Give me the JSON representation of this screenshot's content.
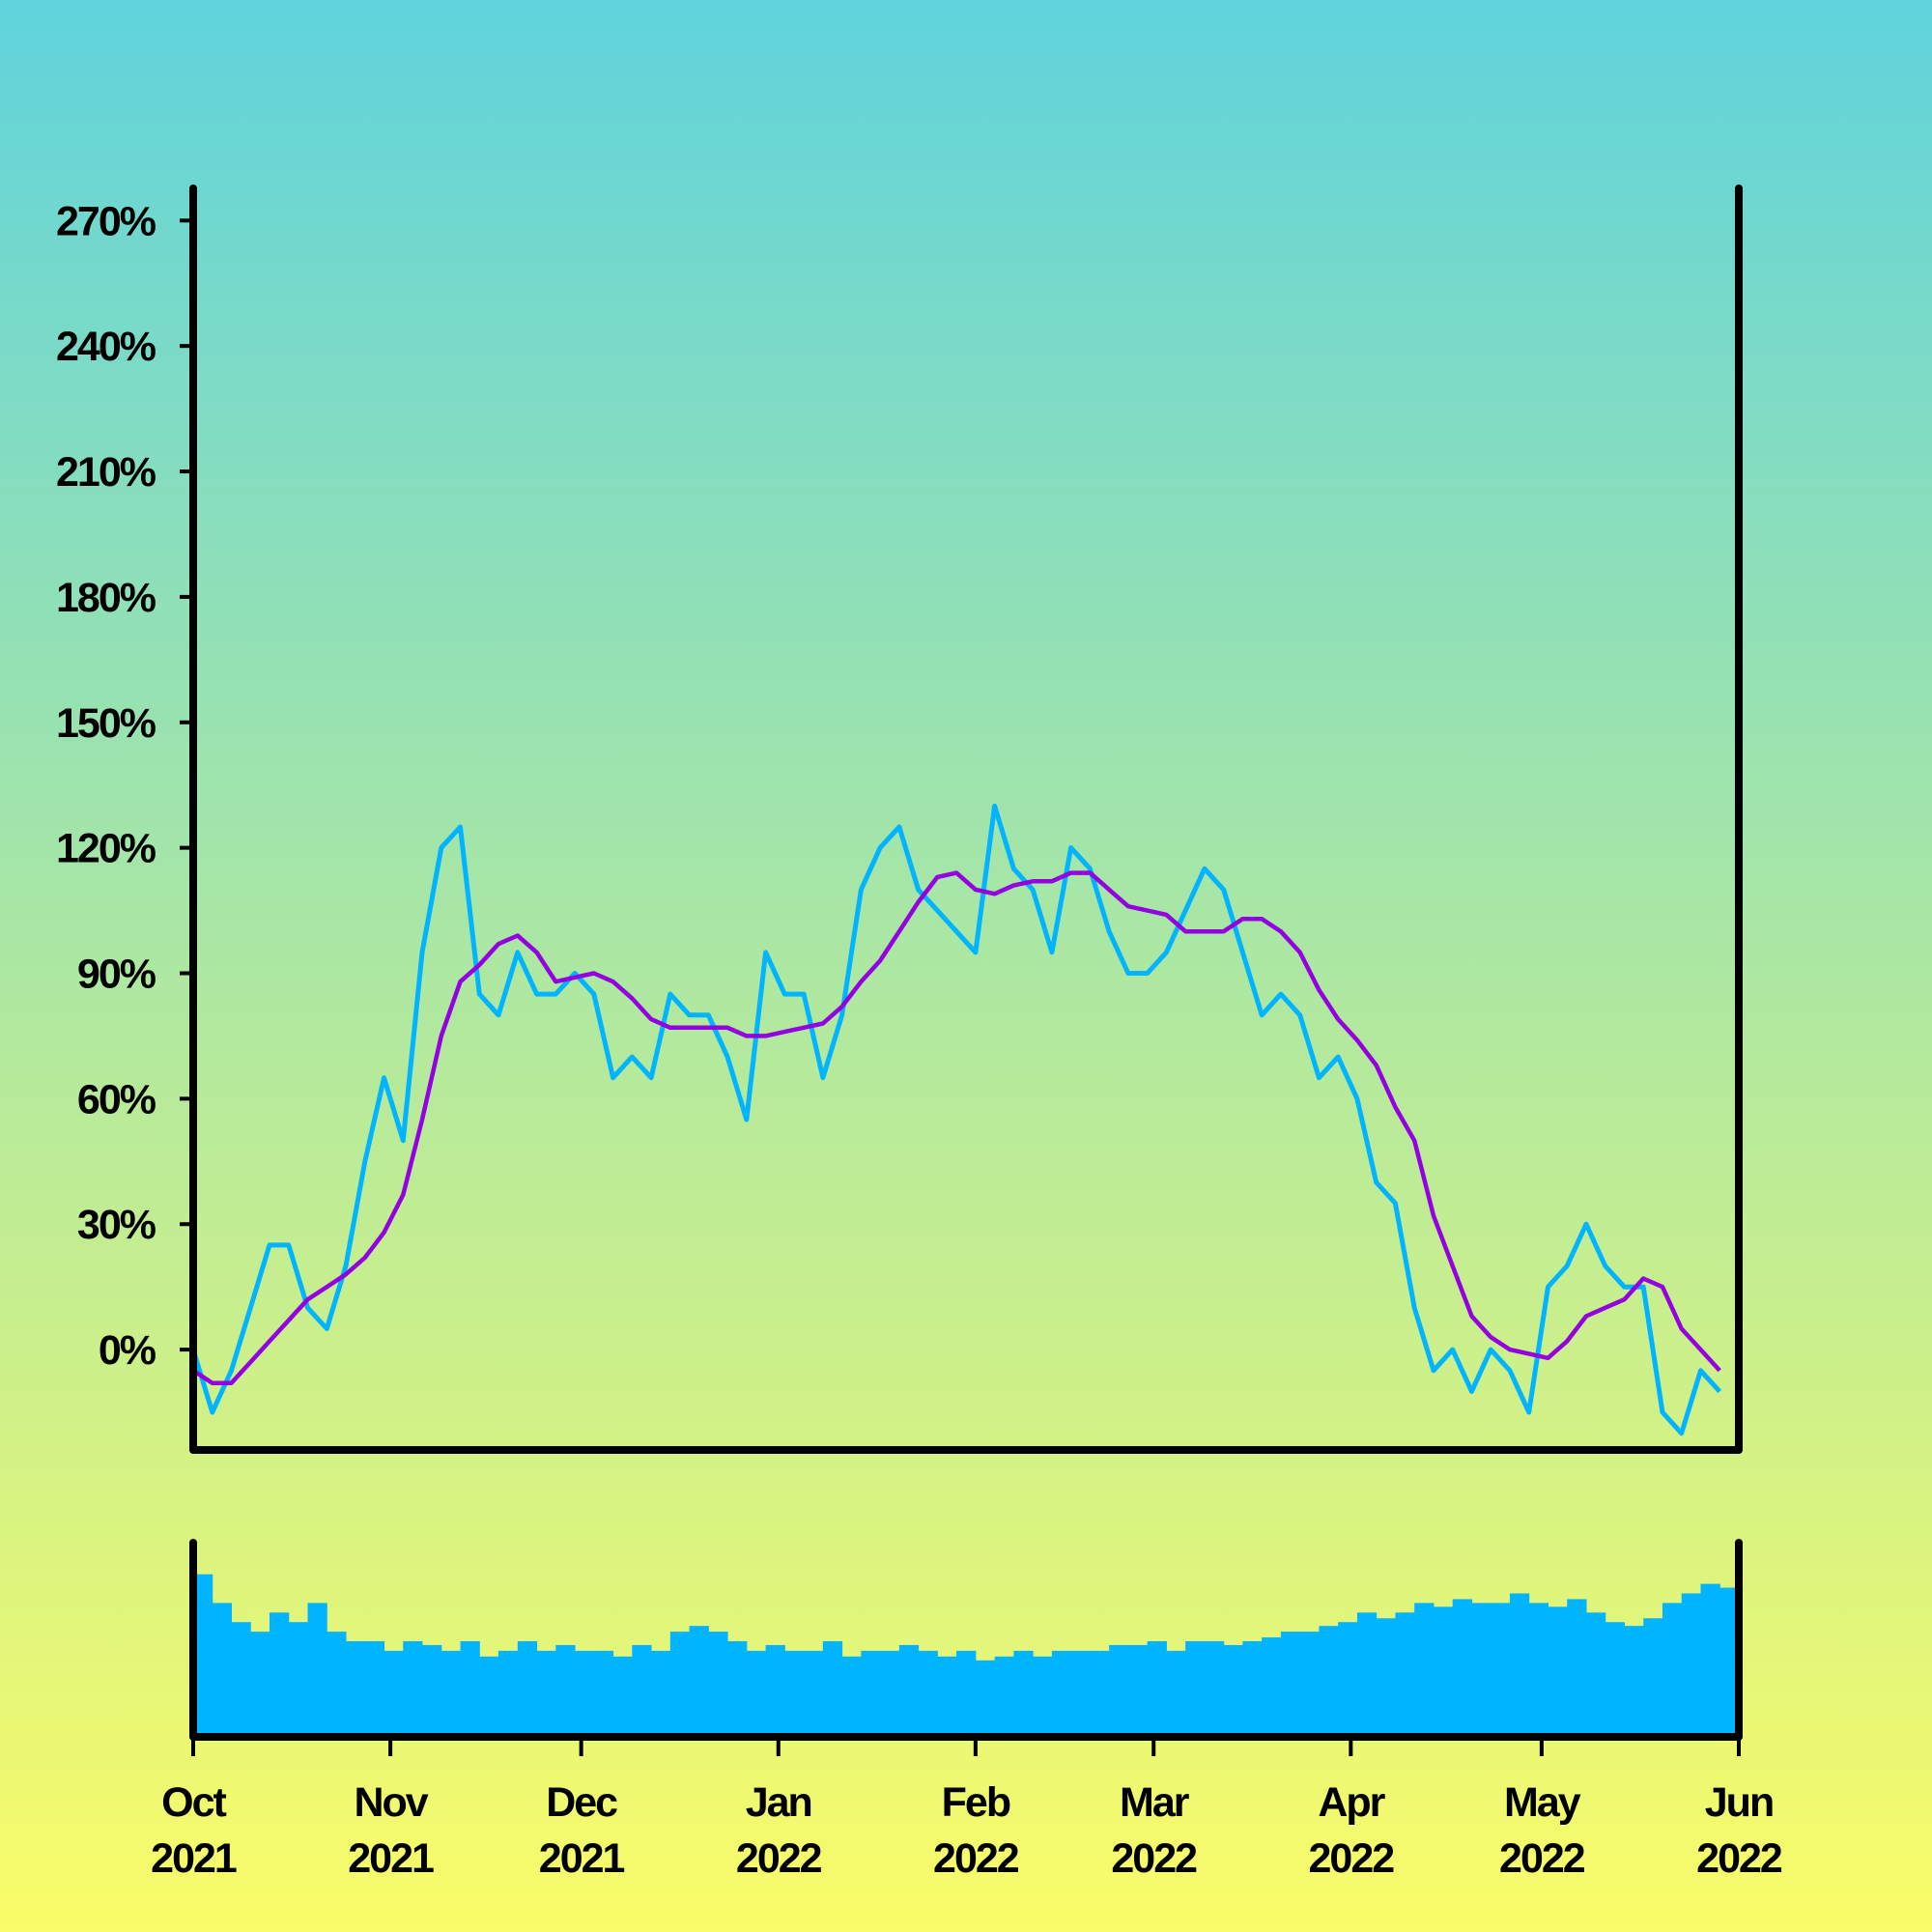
{
  "chart_data": [
    {
      "type": "line",
      "x": [
        0,
        3,
        6,
        9,
        12,
        15,
        18,
        21,
        24,
        27,
        30,
        33,
        36,
        39,
        42,
        45,
        48,
        51,
        54,
        57,
        60,
        63,
        66,
        69,
        72,
        75,
        78,
        81,
        84,
        87,
        90,
        93,
        96,
        99,
        102,
        105,
        108,
        111,
        114,
        117,
        120,
        123,
        126,
        129,
        132,
        135,
        138,
        141,
        144,
        147,
        150,
        153,
        156,
        159,
        162,
        165,
        168,
        171,
        174,
        177,
        180,
        183,
        186,
        189,
        192,
        195,
        198,
        201,
        204,
        207,
        210,
        213,
        216,
        219,
        222,
        225,
        228,
        231,
        234,
        237,
        240
      ],
      "xlim": [
        0,
        243
      ],
      "ylim": [
        -24,
        277
      ],
      "yticks": [
        {
          "value": 0,
          "label": "0%"
        },
        {
          "value": 30,
          "label": "30%"
        },
        {
          "value": 60,
          "label": "60%"
        },
        {
          "value": 90,
          "label": "90%"
        },
        {
          "value": 120,
          "label": "120%"
        },
        {
          "value": 150,
          "label": "150%"
        },
        {
          "value": 180,
          "label": "180%"
        },
        {
          "value": 210,
          "label": "210%"
        },
        {
          "value": 240,
          "label": "240%"
        },
        {
          "value": 270,
          "label": "270%"
        }
      ],
      "series": [
        {
          "color": "#00b4ff",
          "values": [
            0,
            -15,
            -5,
            10,
            25,
            25,
            10,
            5,
            20,
            45,
            65,
            50,
            95,
            120,
            125,
            85,
            80,
            95,
            85,
            85,
            90,
            85,
            65,
            70,
            65,
            85,
            80,
            80,
            70,
            55,
            95,
            85,
            85,
            65,
            80,
            110,
            120,
            125,
            110,
            105,
            100,
            95,
            130,
            115,
            110,
            95,
            120,
            115,
            100,
            90,
            90,
            95,
            105,
            115,
            110,
            95,
            80,
            85,
            80,
            65,
            70,
            60,
            40,
            35,
            10,
            -5,
            0,
            -10,
            0,
            -5,
            -15,
            15,
            20,
            30,
            20,
            15,
            15,
            -15,
            -20,
            -5,
            -10
          ]
        },
        {
          "color": "#9400e0",
          "values": [
            -5,
            -8,
            -8,
            -3,
            2,
            7,
            12,
            15,
            18,
            22,
            28,
            37,
            55,
            75,
            88,
            92,
            97,
            99,
            95,
            88,
            89,
            90,
            88,
            84,
            79,
            77,
            77,
            77,
            77,
            75,
            75,
            76,
            77,
            78,
            82,
            88,
            93,
            100,
            107,
            113,
            114,
            110,
            109,
            111,
            112,
            112,
            114,
            114,
            110,
            106,
            105,
            104,
            100,
            100,
            100,
            103,
            103,
            100,
            95,
            86,
            79,
            74,
            68,
            58,
            50,
            32,
            20,
            8,
            3,
            0,
            -1,
            -2,
            2,
            8,
            10,
            12,
            17,
            15,
            5,
            0,
            -5
          ]
        }
      ]
    },
    {
      "type": "bar",
      "x": [
        0,
        3,
        6,
        9,
        12,
        15,
        18,
        21,
        24,
        27,
        30,
        33,
        36,
        39,
        42,
        45,
        48,
        51,
        54,
        57,
        60,
        63,
        66,
        69,
        72,
        75,
        78,
        81,
        84,
        87,
        90,
        93,
        96,
        99,
        102,
        105,
        108,
        111,
        114,
        117,
        120,
        123,
        126,
        129,
        132,
        135,
        138,
        141,
        144,
        147,
        150,
        153,
        156,
        159,
        162,
        165,
        168,
        171,
        174,
        177,
        180,
        183,
        186,
        189,
        192,
        195,
        198,
        201,
        204,
        207,
        210,
        213,
        216,
        219,
        222,
        225,
        228,
        231,
        234,
        237,
        240
      ],
      "xlim": [
        0,
        243
      ],
      "ylim": [
        0,
        100
      ],
      "color": "#00b4ff",
      "values": [
        85,
        70,
        60,
        55,
        65,
        60,
        70,
        55,
        50,
        50,
        45,
        50,
        48,
        45,
        50,
        42,
        45,
        50,
        45,
        48,
        45,
        45,
        42,
        48,
        45,
        55,
        58,
        55,
        50,
        45,
        48,
        45,
        45,
        50,
        42,
        45,
        45,
        48,
        45,
        42,
        45,
        40,
        42,
        45,
        42,
        45,
        45,
        45,
        48,
        48,
        50,
        45,
        50,
        50,
        48,
        50,
        52,
        55,
        55,
        58,
        60,
        65,
        62,
        65,
        70,
        68,
        72,
        70,
        70,
        75,
        70,
        68,
        72,
        65,
        60,
        58,
        62,
        70,
        75,
        80,
        78
      ],
      "xticks": [
        {
          "value": 0,
          "label": "Oct 2021"
        },
        {
          "value": 31,
          "label": "Nov 2021"
        },
        {
          "value": 61,
          "label": "Dec 2021"
        },
        {
          "value": 92,
          "label": "Jan 2022"
        },
        {
          "value": 123,
          "label": "Feb 2022"
        },
        {
          "value": 151,
          "label": "Mar 2022"
        },
        {
          "value": 182,
          "label": "Apr 2022"
        },
        {
          "value": 212,
          "label": "May 2022"
        },
        {
          "value": 243,
          "label": "Jun 2022"
        }
      ]
    }
  ]
}
